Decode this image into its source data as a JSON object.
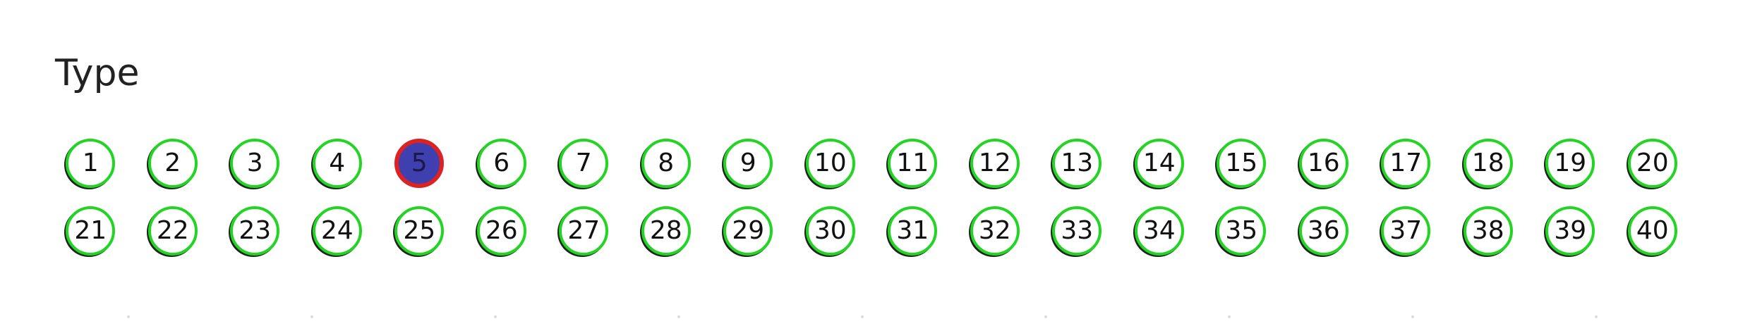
{
  "title": "Type",
  "selected_option": "5",
  "colors": {
    "ring": "#22d522",
    "selected_fill": "#3f3fb0",
    "selected_ring": "#dd2222"
  },
  "options": [
    [
      "1",
      "2",
      "3",
      "4",
      "5",
      "6",
      "7",
      "8",
      "9",
      "10",
      "11",
      "12",
      "13",
      "14",
      "15",
      "16",
      "17",
      "18",
      "19",
      "20"
    ],
    [
      "21",
      "22",
      "23",
      "24",
      "25",
      "26",
      "27",
      "28",
      "29",
      "30",
      "31",
      "32",
      "33",
      "34",
      "35",
      "36",
      "37",
      "38",
      "39",
      "40"
    ]
  ]
}
